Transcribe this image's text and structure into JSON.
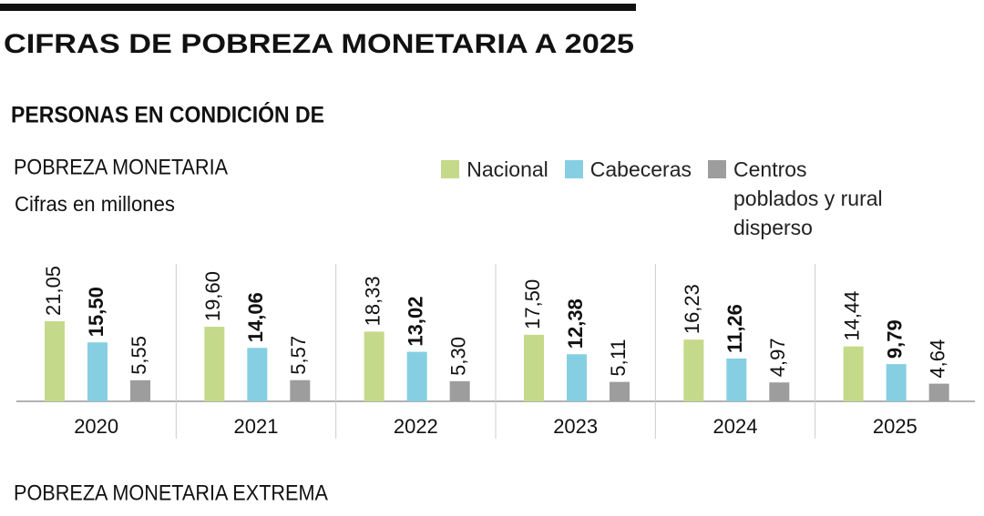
{
  "header": {
    "title": "CIFRAS DE POBREZA MONETARIA A 2025",
    "subtitle": "PERSONAS EN CONDICIÓN DE"
  },
  "chart_data": {
    "type": "bar",
    "title": "POBREZA MONETARIA",
    "subtitle": "Cifras en millones",
    "categories": [
      "2020",
      "2021",
      "2022",
      "2023",
      "2024",
      "2025"
    ],
    "legend": "top-right",
    "series": [
      {
        "name": "Nacional",
        "color": "#c5d98a",
        "values": [
          21.05,
          19.6,
          18.33,
          17.5,
          16.23,
          14.44
        ],
        "value_labels": [
          "21,05",
          "19,60",
          "18,33",
          "17,50",
          "16,23",
          "14,44"
        ]
      },
      {
        "name": "Cabeceras",
        "color": "#86cfe3",
        "bold_labels": true,
        "values": [
          15.5,
          14.06,
          13.02,
          12.38,
          11.26,
          9.79
        ],
        "value_labels": [
          "15,50",
          "14,06",
          "13,02",
          "12,38",
          "11,26",
          "9,79"
        ]
      },
      {
        "name": "Centros poblados y rural disperso",
        "color": "#9d9d9d",
        "values": [
          5.55,
          5.57,
          5.3,
          5.11,
          4.97,
          4.64
        ],
        "value_labels": [
          "5,55",
          "5,57",
          "5,30",
          "5,11",
          "4,97",
          "4,64"
        ]
      }
    ]
  },
  "footer": {
    "next_section": "POBREZA MONETARIA EXTREMA"
  }
}
